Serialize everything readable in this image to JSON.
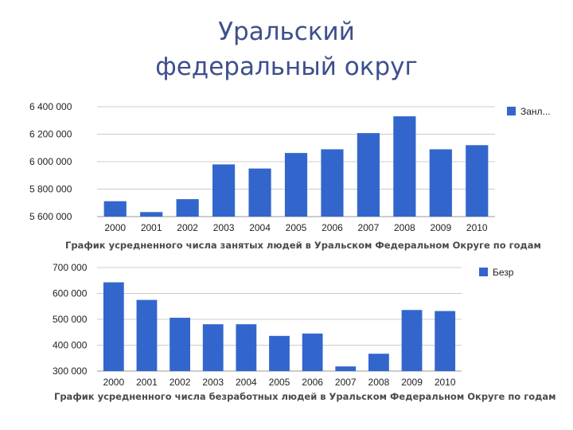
{
  "slide": {
    "title_line1": "Уральский",
    "title_line2": "федеральный округ"
  },
  "colors": {
    "bar": "#3366cc",
    "grid": "#cccccc",
    "tick_text": "#222222"
  },
  "chart_data": [
    {
      "type": "bar",
      "caption": "График усредненного числа занятых людей в Уральском Федеральном Округе по годам",
      "categories": [
        "2000",
        "2001",
        "2002",
        "2003",
        "2004",
        "2005",
        "2006",
        "2007",
        "2008",
        "2009",
        "2010"
      ],
      "series": [
        {
          "name": "Занл...",
          "values": [
            5712000,
            5633000,
            5727000,
            5980000,
            5950000,
            6063000,
            6090000,
            6208000,
            6330000,
            6090000,
            6120000
          ]
        }
      ],
      "ylim": [
        5600000,
        6400000
      ],
      "yticks": [
        "5 600 000",
        "5 800 000",
        "6 000 000",
        "6 200 000",
        "6 400 000"
      ],
      "grid": true,
      "legend_position": "right"
    },
    {
      "type": "bar",
      "caption": "График усредненного числа безработных людей в Уральском Федеральном Округе по годам",
      "categories": [
        "2000",
        "2001",
        "2002",
        "2003",
        "2004",
        "2005",
        "2006",
        "2007",
        "2008",
        "2009",
        "2010"
      ],
      "series": [
        {
          "name": "Безр",
          "values": [
            643000,
            575000,
            506000,
            481000,
            481000,
            436000,
            445000,
            318000,
            367000,
            536000,
            532000
          ]
        }
      ],
      "ylim": [
        300000,
        700000
      ],
      "yticks": [
        "300 000",
        "400 000",
        "500 000",
        "600 000",
        "700 000"
      ],
      "grid": true,
      "legend_position": "right"
    }
  ]
}
